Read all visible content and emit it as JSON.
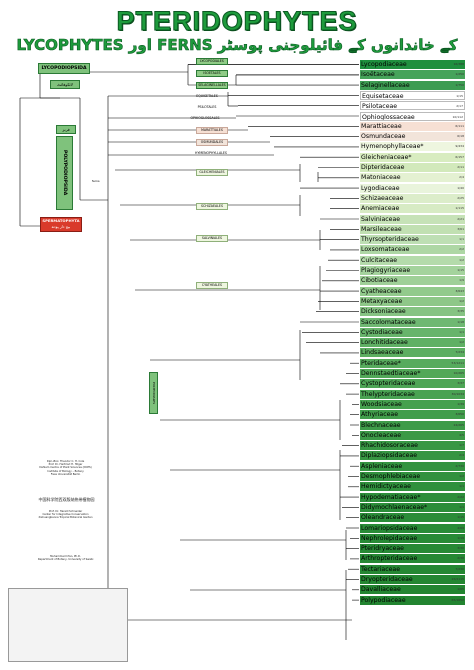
{
  "header": {
    "title": "PTERIDOPHYTES",
    "subtitle": "LYCOPHYTES اور FERNS کے خاندانوں کے فائیلوجنی پوسٹر"
  },
  "clades": {
    "lycopodiopsida": "LYCOPODIOPSIDA",
    "lycopodiopsida_urdu": "لائکوفائٹ",
    "ferns_urdu": "فرنز",
    "polypodiopsida": "POLYPODIOPSIDA",
    "polypodiopsida_urdu": "پولی پوڈیو پسیڈا",
    "spermatophyta": "SPERMATOPHYTA",
    "spermatophyta_urdu": "بیج دار پودے",
    "fern_node": "ferns"
  },
  "orders": {
    "lycopodiales": "LYCOPODIALES",
    "isoetales": "ISOETALES",
    "selaginellales": "SELAGINELLALES",
    "equisetales": "EQUISETALES",
    "psilotales": "PSILOTALES",
    "ophioglossales": "OPHIOGLOSSALES",
    "marattiales": "MARATTIALES",
    "osmundales": "OSMUNDALES",
    "hymenophyllales": "HYMENOPHYLLALES",
    "gleicheniales": "GLEICHENIALES",
    "schizaeales": "SCHIZAEALES",
    "salviniales": "SALVINIALES",
    "cyatheales": "CYATHEALES",
    "polypodiales": "POLYPODIALES"
  },
  "families": [
    {
      "name": "Lycopodiaceae",
      "color": "#1f8f3e",
      "count": "16/388"
    },
    {
      "name": "Isoëtaceae",
      "color": "#46a35a",
      "count": "1/250"
    },
    {
      "name": "Selaginellaceae",
      "color": "#3d9c52",
      "count": "1/750"
    },
    {
      "name": "Equisetaceae",
      "color": "#ffffff",
      "count": "1/15"
    },
    {
      "name": "Psilotaceae",
      "color": "#ffffff",
      "count": "2/17"
    },
    {
      "name": "Ophioglossaceae",
      "color": "#ffffff",
      "count": "10/112"
    },
    {
      "name": "Marattiaceae",
      "color": "#f6e0d4",
      "count": "6/111"
    },
    {
      "name": "Osmundaceae",
      "color": "#f2e4da",
      "count": "6/18"
    },
    {
      "name": "Hymenophyllaceae*",
      "color": "#eef6df",
      "count": "9/434"
    },
    {
      "name": "Gleicheniaceae*",
      "color": "#d8ecc0",
      "count": "6/157"
    },
    {
      "name": "Dipteridaceae",
      "color": "#d2e9bb",
      "count": "2/11"
    },
    {
      "name": "Matoniaceae",
      "color": "#e4f1d2",
      "count": "2/4"
    },
    {
      "name": "Lygodiaceae",
      "color": "#e9f4dc",
      "count": "1/40"
    },
    {
      "name": "Schizaeaceae",
      "color": "#dcedca",
      "count": "2/25"
    },
    {
      "name": "Anemiaceae",
      "color": "#d7ebc4",
      "count": "1/115"
    },
    {
      "name": "Salviniaceae",
      "color": "#c6e2b7",
      "count": "2/21"
    },
    {
      "name": "Marsileaceae",
      "color": "#c1e0b2",
      "count": "3/61"
    },
    {
      "name": "Thyrsopteridaceae",
      "color": "#bedfb4",
      "count": "1/1"
    },
    {
      "name": "Loxsomataceae",
      "color": "#aed7a5",
      "count": "2/2"
    },
    {
      "name": "Culcitaceae",
      "color": "#b4dbab",
      "count": "1/2"
    },
    {
      "name": "Plagiogyriaceae",
      "color": "#a4d39d",
      "count": "1/15"
    },
    {
      "name": "Cibotiaceae",
      "color": "#9fd098",
      "count": "1/9"
    },
    {
      "name": "Cyatheaceae",
      "color": "#92ca8c",
      "count": "3/643"
    },
    {
      "name": "Metaxyaceae",
      "color": "#8ec788",
      "count": "1/2"
    },
    {
      "name": "Dicksoniaceae",
      "color": "#86c383",
      "count": "3/35"
    },
    {
      "name": "Saccolomataceae",
      "color": "#6fb872",
      "count": "1/18"
    },
    {
      "name": "Cystodiaceae",
      "color": "#67b46b",
      "count": "1/1"
    },
    {
      "name": "Lonchitidaceae",
      "color": "#5fb064",
      "count": "1/2"
    },
    {
      "name": "Lindsaeaceae",
      "color": "#5cae61",
      "count": "7/234"
    },
    {
      "name": "Pteridaceae*",
      "color": "#57ab5d",
      "count": "53/1211"
    },
    {
      "name": "Dennstaedtiaceae*",
      "color": "#52a858",
      "count": "10/265"
    },
    {
      "name": "Cystopteridaceae",
      "color": "#4ea556",
      "count": "3/37"
    },
    {
      "name": "Thelypteridaceae",
      "color": "#49a252",
      "count": "30/1034"
    },
    {
      "name": "Woodsiaceae",
      "color": "#45a04e",
      "count": "1/39"
    },
    {
      "name": "Athyriaceae",
      "color": "#419d4b",
      "count": "3/650"
    },
    {
      "name": "Blechnaceae",
      "color": "#3e9b49",
      "count": "24/265"
    },
    {
      "name": "Onocleaceae",
      "color": "#3b9946",
      "count": "4/5"
    },
    {
      "name": "Rhachidosoraceae",
      "color": "#389744",
      "count": "1/7"
    },
    {
      "name": "Diplaziopsidaceae",
      "color": "#369542",
      "count": "2/4"
    },
    {
      "name": "Aspleniaceae",
      "color": "#339340",
      "count": "2/730"
    },
    {
      "name": "Desmophlebiaceae",
      "color": "#31913e",
      "count": "1/2"
    },
    {
      "name": "Hemidictyaceae",
      "color": "#2f903c",
      "count": "1/1"
    },
    {
      "name": "Hypodematiaceae*",
      "color": "#2d8e3b",
      "count": "2/22"
    },
    {
      "name": "Didymochlaenaceae*",
      "color": "#2b8d39",
      "count": "1/1"
    },
    {
      "name": "Oleandraceae",
      "color": "#2a8c38",
      "count": "1/15"
    },
    {
      "name": "Lomariopsidaceae",
      "color": "#298b37",
      "count": "4/69"
    },
    {
      "name": "Nephrolepidaceae",
      "color": "#288a36",
      "count": "1/19"
    },
    {
      "name": "Pteridryaceae",
      "color": "#278935",
      "count": "3/30"
    },
    {
      "name": "Arthropteridaceae",
      "color": "#268834",
      "count": "2/30"
    },
    {
      "name": "Tectariaceae",
      "color": "#258733",
      "count": "7/230"
    },
    {
      "name": "Dryopteridaceae",
      "color": "#248632",
      "count": "26/2115"
    },
    {
      "name": "Davalliaceae",
      "color": "#238531",
      "count": "1/65"
    },
    {
      "name": "Polypodiaceae",
      "color": "#228430",
      "count": "65/1652"
    }
  ],
  "credits": {
    "c1": "Dipl.-Biol. Theodor C. H. Cole",
    "c2": "Prof. Dr. Hartmut H. Hilger",
    "c3": "Dahlem Centre of Plant Sciences (DCPS)",
    "c4": "Institute of Biology – Botany",
    "c5": "Freie Universität Berlin",
    "c6": "Prof. Dr. Harald Schneider",
    "c7": "Center for Integrative Conservation",
    "c8": "Xishuangbanna Tropical Botanical Garden",
    "c9": "Muhammad Irfan, Ph.D.",
    "c10": "Department of Botany, University of Swabi",
    "chinese": "中国科学院西双版纳热带植物园"
  }
}
